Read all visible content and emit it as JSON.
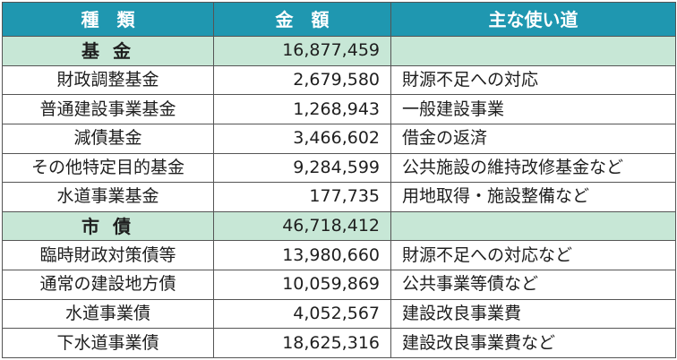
{
  "header": {
    "col_type": "種　類",
    "col_amount": "金　額",
    "col_use": "主な使い道"
  },
  "rows": [
    {
      "name": "基 金",
      "amount": "16,877,459",
      "use": "",
      "kind": "category"
    },
    {
      "name": "財政調整基金",
      "amount": "2,679,580",
      "use": "財源不足への対応",
      "kind": "item"
    },
    {
      "name": "普通建設事業基金",
      "amount": "1,268,943",
      "use": "一般建設事業",
      "kind": "item"
    },
    {
      "name": "減債基金",
      "amount": "3,466,602",
      "use": "借金の返済",
      "kind": "item"
    },
    {
      "name": "その他特定目的基金",
      "amount": "9,284,599",
      "use": "公共施設の維持改修基金など",
      "kind": "item"
    },
    {
      "name": "水道事業基金",
      "amount": "177,735",
      "use": "用地取得・施設整備など",
      "kind": "item"
    },
    {
      "name": "市 債",
      "amount": "46,718,412",
      "use": "",
      "kind": "category"
    },
    {
      "name": "臨時財政対策債等",
      "amount": "13,980,660",
      "use": "財源不足への対応など",
      "kind": "item"
    },
    {
      "name": "通常の建設地方債",
      "amount": "10,059,869",
      "use": "公共事業等債など",
      "kind": "item"
    },
    {
      "name": "水道事業債",
      "amount": "4,052,567",
      "use": "建設改良事業費",
      "kind": "item"
    },
    {
      "name": "下水道事業債",
      "amount": "18,625,316",
      "use": "建設改良事業費など",
      "kind": "item"
    }
  ],
  "colors": {
    "header_bg": "#1f97b0",
    "category_bg": "#c7e7d6",
    "border": "#555555"
  }
}
